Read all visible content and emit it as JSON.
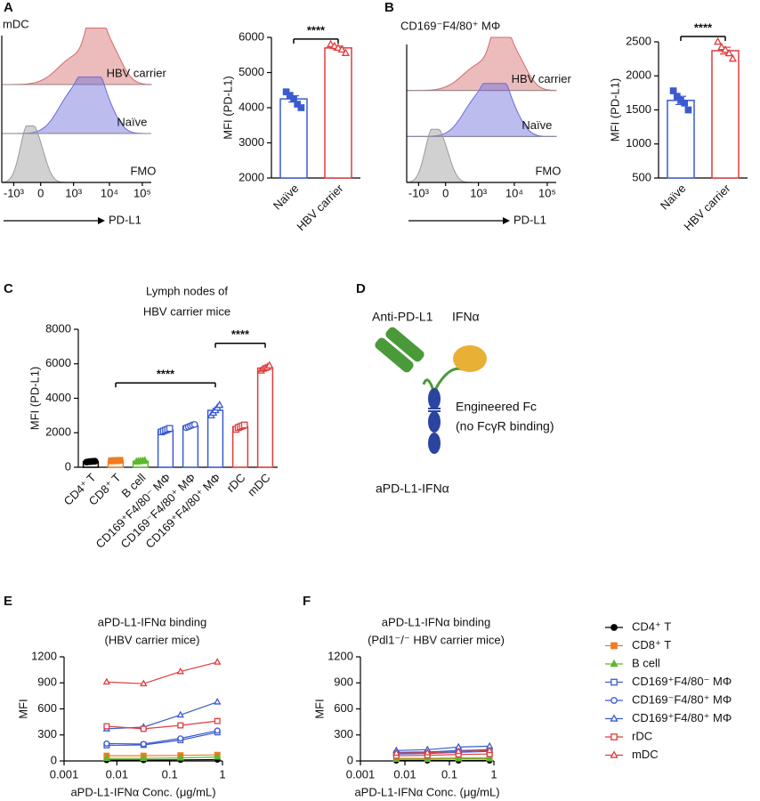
{
  "panel_labels": [
    "A",
    "B",
    "C",
    "D",
    "E",
    "F"
  ],
  "diagram": {
    "labels": [
      "Anti-PD-L1",
      "IFNα",
      "Engineered Fc",
      "(no FcγR binding)",
      "aPD-L1-IFNα"
    ]
  },
  "chart_data": [
    {
      "type": "histogram_overlay",
      "title": "mDC",
      "xlabel": "PD-L1",
      "xtick_labels": [
        "-10³",
        "0",
        "10³",
        "10⁴",
        "10⁵"
      ],
      "series": [
        {
          "name": "HBV carrier",
          "color": "#d46a6a"
        },
        {
          "name": "Naïve",
          "color": "#6b6bdc"
        },
        {
          "name": "FMO",
          "color": "#9a9a9a"
        }
      ]
    },
    {
      "type": "bar_dot",
      "ylabel": "MFI (PD-L1)",
      "categories": [
        "Naïve",
        "HBV carrier"
      ],
      "values": [
        4250,
        5700
      ],
      "errors": [
        90,
        50
      ],
      "points": [
        [
          4450,
          4350,
          4250,
          4100,
          4000
        ],
        [
          5800,
          5750,
          5700,
          5650,
          5550
        ]
      ],
      "colors": [
        "#3a5bd0",
        "#e03c3c"
      ],
      "markers": [
        "square",
        "triangle"
      ],
      "filled": [
        true,
        false
      ],
      "ylim": [
        2000,
        6000
      ],
      "yticks": [
        2000,
        3000,
        4000,
        5000,
        6000
      ],
      "comparisons": [
        {
          "pair": [
            "Naïve",
            "HBV carrier"
          ],
          "label": "****"
        }
      ]
    },
    {
      "type": "histogram_overlay",
      "title": "CD169⁻F4/80⁺ MΦ",
      "xlabel": "PD-L1",
      "xtick_labels": [
        "-10³",
        "0",
        "10³",
        "10⁴",
        "10⁵"
      ],
      "series": [
        {
          "name": "HBV carrier",
          "color": "#d46a6a"
        },
        {
          "name": "Naïve",
          "color": "#6b6bdc"
        },
        {
          "name": "FMO",
          "color": "#9a9a9a"
        }
      ]
    },
    {
      "type": "bar_dot",
      "ylabel": "MFI (PD-L1)",
      "categories": [
        "Naïve",
        "HBV carrier"
      ],
      "values": [
        1640,
        2370
      ],
      "errors": [
        60,
        50
      ],
      "points": [
        [
          1780,
          1700,
          1640,
          1600,
          1500
        ],
        [
          2500,
          2420,
          2380,
          2330,
          2250
        ]
      ],
      "colors": [
        "#3a5bd0",
        "#e03c3c"
      ],
      "markers": [
        "square",
        "triangle"
      ],
      "filled": [
        true,
        false
      ],
      "ylim": [
        500,
        2500
      ],
      "yticks": [
        500,
        1000,
        1500,
        2000,
        2500
      ],
      "comparisons": [
        {
          "pair": [
            "Naïve",
            "HBV carrier"
          ],
          "label": "****"
        }
      ]
    },
    {
      "type": "bar_dot",
      "title": [
        "Lymph nodes of",
        "HBV carrier mice"
      ],
      "ylabel": "MFI (PD-L1)",
      "categories": [
        "CD4⁺ T",
        "CD8⁺ T",
        "B cell",
        "CD169⁺F4/80⁻ MΦ",
        "CD169⁻F4/80⁺ MΦ",
        "CD169⁺F4/80⁺ MΦ",
        "rDC",
        "mDC"
      ],
      "values": [
        330,
        380,
        350,
        2150,
        2400,
        3300,
        2350,
        5750
      ],
      "errors": [
        20,
        15,
        20,
        50,
        40,
        120,
        50,
        60
      ],
      "points": [
        [
          300,
          320,
          330,
          340,
          350
        ],
        [
          370,
          380,
          380,
          390,
          400
        ],
        [
          320,
          340,
          350,
          360,
          380
        ],
        [
          2050,
          2100,
          2150,
          2200,
          2250
        ],
        [
          2300,
          2350,
          2400,
          2450,
          2480
        ],
        [
          3000,
          3150,
          3300,
          3450,
          3600
        ],
        [
          2200,
          2300,
          2350,
          2400,
          2450
        ],
        [
          5600,
          5700,
          5750,
          5800,
          5900
        ]
      ],
      "colors": [
        "#000000",
        "#f07b20",
        "#5cb82e",
        "#3a5bd0",
        "#3a5bd0",
        "#3a5bd0",
        "#e03c3c",
        "#e03c3c"
      ],
      "markers": [
        "circle",
        "square",
        "triangle",
        "square",
        "circle",
        "triangle",
        "square",
        "triangle"
      ],
      "filled": [
        true,
        true,
        true,
        false,
        false,
        false,
        false,
        false
      ],
      "ylim": [
        0,
        8000
      ],
      "yticks": [
        0,
        2000,
        4000,
        6000,
        8000
      ],
      "comparisons": [
        {
          "pair": [
            "CD8⁺ T",
            "CD169⁺F4/80⁺ MΦ"
          ],
          "label": "****"
        },
        {
          "pair": [
            "CD169⁺F4/80⁺ MΦ",
            "mDC"
          ],
          "label": "****"
        }
      ]
    },
    {
      "type": "line",
      "title": [
        "aPD-L1-IFNα binding",
        "(HBV carrier mice)"
      ],
      "ylabel": "MFI",
      "xlabel": "aPD-L1-IFNα Conc. (μg/mL)",
      "xlog": true,
      "xlim": [
        0.001,
        1
      ],
      "xticks": [
        0.001,
        0.01,
        0.1,
        1
      ],
      "ylim": [
        0,
        1200
      ],
      "yticks": [
        0,
        300,
        600,
        900,
        1200
      ],
      "x": [
        0.0064,
        0.032,
        0.16,
        0.8
      ],
      "series": [
        {
          "color": "#000000",
          "marker": "circle",
          "filled": true,
          "values": [
            10,
            10,
            12,
            15
          ]
        },
        {
          "color": "#f07b20",
          "marker": "square",
          "filled": true,
          "values": [
            60,
            60,
            65,
            70
          ]
        },
        {
          "color": "#5cb82e",
          "marker": "triangle",
          "filled": true,
          "values": [
            30,
            30,
            35,
            45
          ]
        },
        {
          "color": "#3a5bd0",
          "marker": "square",
          "filled": false,
          "values": [
            180,
            185,
            240,
            330
          ]
        },
        {
          "color": "#3a5bd0",
          "marker": "circle",
          "filled": false,
          "values": [
            200,
            195,
            260,
            350
          ]
        },
        {
          "color": "#3a5bd0",
          "marker": "triangle",
          "filled": false,
          "values": [
            370,
            390,
            530,
            680
          ]
        },
        {
          "color": "#e03c3c",
          "marker": "square",
          "filled": false,
          "values": [
            400,
            370,
            410,
            460
          ]
        },
        {
          "color": "#e03c3c",
          "marker": "triangle",
          "filled": false,
          "values": [
            910,
            890,
            1030,
            1140
          ]
        }
      ]
    },
    {
      "type": "line",
      "title": [
        "aPD-L1-IFNα binding",
        "(Pdl1⁻/⁻ HBV carrier mice)"
      ],
      "ylabel": "MFI",
      "xlabel": "aPD-L1-IFNα Conc. (μg/mL)",
      "xlog": true,
      "xlim": [
        0.001,
        1
      ],
      "xticks": [
        0.001,
        0.01,
        0.1,
        1
      ],
      "ylim": [
        0,
        1200
      ],
      "yticks": [
        0,
        300,
        600,
        900,
        1200
      ],
      "x": [
        0.0064,
        0.032,
        0.16,
        0.8
      ],
      "legend": "right",
      "series": [
        {
          "name": "CD4⁺ T",
          "color": "#000000",
          "marker": "circle",
          "filled": true,
          "values": [
            5,
            5,
            5,
            5
          ]
        },
        {
          "name": "CD8⁺ T",
          "color": "#f07b20",
          "marker": "square",
          "filled": true,
          "values": [
            30,
            30,
            35,
            35
          ]
        },
        {
          "name": "B cell",
          "color": "#5cb82e",
          "marker": "triangle",
          "filled": true,
          "values": [
            20,
            20,
            25,
            25
          ]
        },
        {
          "name": "CD169⁺F4/80⁻ MΦ",
          "color": "#3a5bd0",
          "marker": "square",
          "filled": false,
          "values": [
            80,
            85,
            100,
            110
          ]
        },
        {
          "name": "CD169⁻F4/80⁺ MΦ",
          "color": "#3a5bd0",
          "marker": "circle",
          "filled": false,
          "values": [
            100,
            105,
            120,
            130
          ]
        },
        {
          "name": "CD169⁺F4/80⁺ MΦ",
          "color": "#3a5bd0",
          "marker": "triangle",
          "filled": false,
          "values": [
            120,
            130,
            160,
            170
          ]
        },
        {
          "name": "rDC",
          "color": "#e03c3c",
          "marker": "square",
          "filled": false,
          "values": [
            60,
            65,
            75,
            80
          ]
        },
        {
          "name": "mDC",
          "color": "#e03c3c",
          "marker": "triangle",
          "filled": false,
          "values": [
            90,
            95,
            110,
            120
          ]
        }
      ]
    }
  ]
}
